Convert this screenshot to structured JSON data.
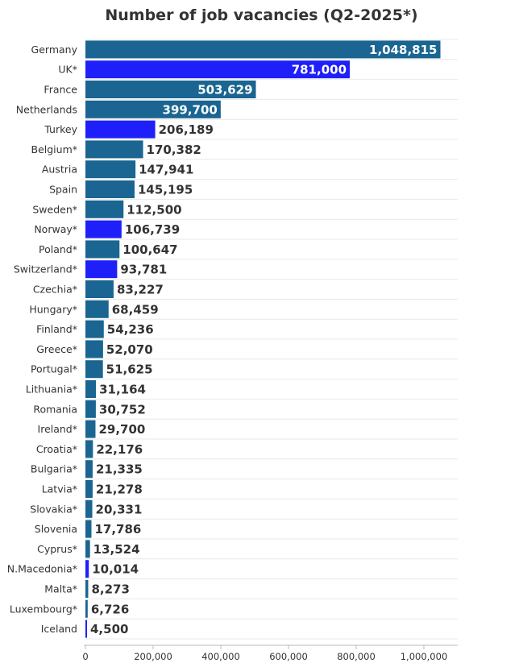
{
  "chart_data": {
    "type": "bar",
    "orientation": "horizontal",
    "title": "Number of job vacancies (Q2-2025*)",
    "categories": [
      "Germany",
      "UK*",
      "France",
      "Netherlands",
      "Turkey",
      "Belgium*",
      "Austria",
      "Spain",
      "Sweden*",
      "Norway*",
      "Poland*",
      "Switzerland*",
      "Czechia*",
      "Hungary*",
      "Finland*",
      "Greece*",
      "Portugal*",
      "Lithuania*",
      "Romania",
      "Ireland*",
      "Croatia*",
      "Bulgaria*",
      "Latvia*",
      "Slovakia*",
      "Slovenia",
      "Cyprus*",
      "N.Macedonia*",
      "Malta*",
      "Luxembourg*",
      "Iceland"
    ],
    "values": [
      1048815,
      781000,
      503629,
      399700,
      206189,
      170382,
      147941,
      145195,
      112500,
      106739,
      100647,
      93781,
      83227,
      68459,
      54236,
      52070,
      51625,
      31164,
      30752,
      29700,
      22176,
      21335,
      21278,
      20331,
      17786,
      13524,
      10014,
      8273,
      6726,
      4500
    ],
    "value_labels": [
      "1,048,815",
      "781,000",
      "503,629",
      "399,700",
      "206,189",
      "170,382",
      "147,941",
      "145,195",
      "112,500",
      "106,739",
      "100,647",
      "93,781",
      "83,227",
      "68,459",
      "54,236",
      "52,070",
      "51,625",
      "31,164",
      "30,752",
      "29,700",
      "22,176",
      "21,335",
      "21,278",
      "20,331",
      "17,786",
      "13,524",
      "10,014",
      "8,273",
      "6,726",
      "4,500"
    ],
    "highlight": [
      false,
      true,
      false,
      false,
      true,
      false,
      false,
      false,
      false,
      true,
      false,
      true,
      false,
      false,
      false,
      false,
      false,
      false,
      false,
      false,
      false,
      false,
      false,
      false,
      false,
      false,
      true,
      false,
      false,
      true
    ],
    "colors": {
      "eu_bar": "#1a6591",
      "non_eu_bar": "#1f1ffa",
      "label_inside": "#ffffff",
      "label_outside": "#333333"
    },
    "xticks": [
      0,
      200000,
      400000,
      600000,
      800000,
      1000000
    ],
    "xtick_labels": [
      "0",
      "200,000",
      "400,000",
      "600,000",
      "800,000",
      "1,000,000"
    ],
    "xlim": [
      0,
      1100000
    ],
    "xlabel": "",
    "ylabel": "",
    "grid": true,
    "legend": "none"
  }
}
